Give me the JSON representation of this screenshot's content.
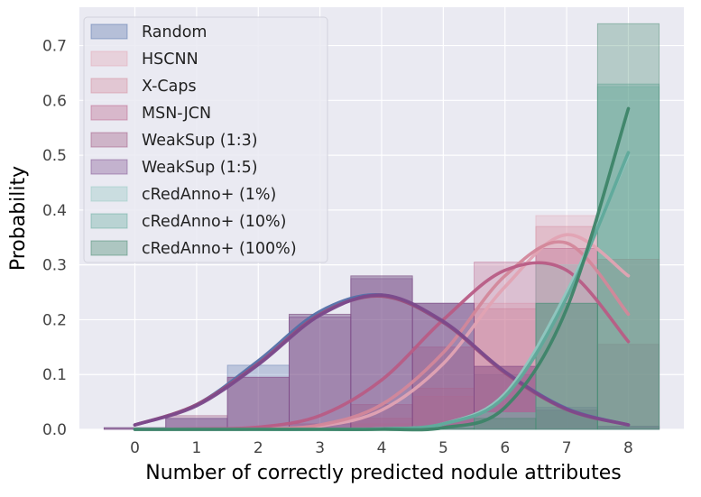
{
  "chart_data": {
    "type": "bar",
    "xlabel": "Number of correctly predicted nodule attributes",
    "ylabel": "Probability",
    "categories": [
      0,
      1,
      2,
      3,
      4,
      5,
      6,
      7,
      8
    ],
    "xlim": [
      -0.9,
      8.9
    ],
    "ylim": [
      0,
      0.77
    ],
    "yticks": [
      0.0,
      0.1,
      0.2,
      0.3,
      0.4,
      0.5,
      0.6,
      0.7
    ],
    "ytick_labels": [
      "0.0",
      "0.1",
      "0.2",
      "0.3",
      "0.4",
      "0.5",
      "0.6",
      "0.7"
    ],
    "grid": true,
    "legend_position": "top-left",
    "series": [
      {
        "name": "Random",
        "color": "#5470a8",
        "values": [
          0.003,
          0.02,
          0.117,
          0.21,
          0.28,
          0.23,
          0.1,
          0.035,
          0.005
        ],
        "curve": [
          0.008,
          0.045,
          0.125,
          0.215,
          0.245,
          0.195,
          0.105,
          0.038,
          0.008
        ]
      },
      {
        "name": "HSCNN",
        "color": "#e1a3b3",
        "values": [
          0,
          0,
          0,
          0.002,
          0.01,
          0.06,
          0.23,
          0.39,
          0.31
        ],
        "curve": [
          0.0,
          0.0,
          0.001,
          0.006,
          0.035,
          0.12,
          0.26,
          0.355,
          0.28
        ]
      },
      {
        "name": "X-Caps",
        "color": "#d3879a",
        "values": [
          0,
          0,
          0,
          0.003,
          0.02,
          0.075,
          0.22,
          0.37,
          0.31
        ],
        "curve": [
          0.0,
          0.0,
          0.001,
          0.008,
          0.045,
          0.14,
          0.28,
          0.34,
          0.21
        ]
      },
      {
        "name": "MSN-JCN",
        "color": "#b85c85",
        "values": [
          0,
          0,
          0.002,
          0.01,
          0.045,
          0.15,
          0.305,
          0.33,
          0.155
        ],
        "curve": [
          0.0,
          0.001,
          0.004,
          0.025,
          0.09,
          0.2,
          0.29,
          0.29,
          0.16
        ]
      },
      {
        "name": "WeakSup (1:3)",
        "color": "#9b4f7c",
        "values": [
          0.003,
          0.025,
          0.095,
          0.21,
          0.28,
          0.23,
          0.115,
          0.035,
          0.005
        ],
        "curve": [
          0.008,
          0.045,
          0.12,
          0.21,
          0.243,
          0.195,
          0.103,
          0.036,
          0.008
        ]
      },
      {
        "name": "WeakSup (1:5)",
        "color": "#7b4a8c",
        "values": [
          0.003,
          0.02,
          0.095,
          0.205,
          0.275,
          0.23,
          0.115,
          0.04,
          0.006
        ],
        "curve": [
          0.008,
          0.043,
          0.118,
          0.208,
          0.245,
          0.197,
          0.105,
          0.037,
          0.008
        ]
      },
      {
        "name": "cRedAnno+ (1%)",
        "color": "#8fc7c0",
        "values": [
          0,
          0,
          0,
          0,
          0.002,
          0.005,
          0.03,
          0.3,
          0.625
        ],
        "curve": [
          0.0,
          0.0,
          0.0,
          0.0,
          0.001,
          0.01,
          0.065,
          0.25,
          0.5
        ]
      },
      {
        "name": "cRedAnno+ (10%)",
        "color": "#5fa99a",
        "values": [
          0,
          0,
          0,
          0,
          0.002,
          0.005,
          0.03,
          0.23,
          0.63
        ],
        "curve": [
          0.0,
          0.0,
          0.0,
          0.0,
          0.001,
          0.01,
          0.06,
          0.24,
          0.505
        ]
      },
      {
        "name": "cRedAnno+ (100%)",
        "color": "#3d8468",
        "values": [
          0,
          0,
          0,
          0,
          0.0,
          0.002,
          0.02,
          0.23,
          0.74
        ],
        "curve": [
          0.0,
          0.0,
          0.0,
          0.0,
          0.0,
          0.003,
          0.04,
          0.22,
          0.585
        ]
      }
    ]
  }
}
